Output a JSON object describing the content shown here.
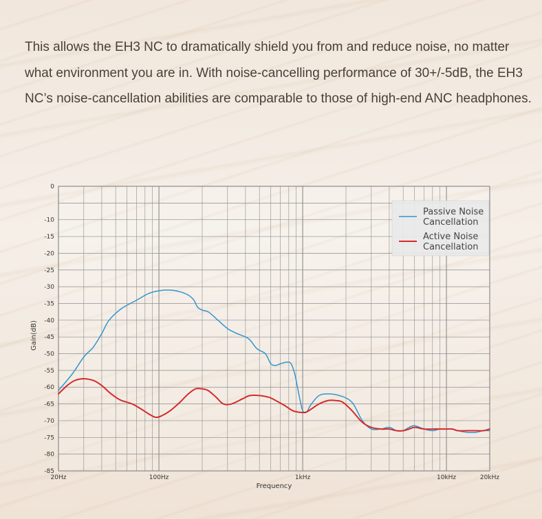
{
  "intro": {
    "lines": [
      "This allows the EH3 NC to dramatically shield you from and reduce noise, no matter",
      "what environment you are in. With noise-cancelling performance of 30+/-5dB, the EH3",
      "NC’s noise-cancellation abilities are comparable to those of high-end ANC headphones."
    ]
  },
  "colors": {
    "passive": "#2f96cf",
    "active": "#d42a2a",
    "grid": "#8c8c8c"
  },
  "chart_data": {
    "type": "line",
    "title": "",
    "xlabel": "Frequency",
    "ylabel": "Gain(dB)",
    "x_scale": "log",
    "xlim": [
      20,
      20000
    ],
    "ylim": [
      -85,
      0
    ],
    "y_ticks": [
      0,
      -10,
      -15,
      -20,
      -25,
      -30,
      -35,
      -40,
      -45,
      -50,
      -55,
      -60,
      -65,
      -70,
      -75,
      -80,
      -85
    ],
    "x_tick_labels": [
      {
        "value": 20,
        "label": "20Hz"
      },
      {
        "value": 100,
        "label": "100Hz"
      },
      {
        "value": 1000,
        "label": "1kHz"
      },
      {
        "value": 10000,
        "label": "10kHz"
      },
      {
        "value": 20000,
        "label": "20kHz"
      }
    ],
    "legend": {
      "position": "top-right",
      "entries": [
        {
          "key": "passive",
          "lines": [
            "Passive Noise",
            "Cancellation"
          ]
        },
        {
          "key": "active",
          "lines": [
            "Active Noise",
            "Cancellation"
          ]
        }
      ]
    },
    "series": [
      {
        "name": "Passive Noise Cancellation",
        "key": "passive",
        "points": [
          [
            20,
            -61
          ],
          [
            25,
            -56
          ],
          [
            30,
            -51
          ],
          [
            35,
            -48
          ],
          [
            40,
            -44
          ],
          [
            45,
            -40
          ],
          [
            55,
            -36.5
          ],
          [
            70,
            -34
          ],
          [
            85,
            -32
          ],
          [
            100,
            -31.2
          ],
          [
            120,
            -31
          ],
          [
            140,
            -31.5
          ],
          [
            160,
            -32.5
          ],
          [
            175,
            -34
          ],
          [
            185,
            -36
          ],
          [
            200,
            -37
          ],
          [
            220,
            -37.5
          ],
          [
            250,
            -39.5
          ],
          [
            300,
            -42.5
          ],
          [
            350,
            -44
          ],
          [
            420,
            -45.5
          ],
          [
            480,
            -48.5
          ],
          [
            550,
            -50
          ],
          [
            600,
            -53
          ],
          [
            650,
            -53.5
          ],
          [
            700,
            -53
          ],
          [
            780,
            -52.5
          ],
          [
            830,
            -53
          ],
          [
            880,
            -56
          ],
          [
            920,
            -60
          ],
          [
            960,
            -64
          ],
          [
            1000,
            -67
          ],
          [
            1060,
            -67.5
          ],
          [
            1150,
            -65
          ],
          [
            1300,
            -62.5
          ],
          [
            1500,
            -62
          ],
          [
            1800,
            -62.5
          ],
          [
            2200,
            -64.5
          ],
          [
            2600,
            -70
          ],
          [
            3000,
            -72.5
          ],
          [
            3500,
            -72.5
          ],
          [
            4000,
            -72
          ],
          [
            4500,
            -73
          ],
          [
            5000,
            -73
          ],
          [
            5500,
            -72
          ],
          [
            6000,
            -71.5
          ],
          [
            7000,
            -72.5
          ],
          [
            8000,
            -73
          ],
          [
            9000,
            -72.5
          ],
          [
            10000,
            -72.5
          ],
          [
            11000,
            -72.5
          ],
          [
            12000,
            -73
          ],
          [
            14000,
            -73.5
          ],
          [
            16000,
            -73.5
          ],
          [
            18000,
            -73
          ],
          [
            20000,
            -73
          ]
        ]
      },
      {
        "name": "Active Noise Cancellation",
        "key": "active",
        "points": [
          [
            20,
            -62
          ],
          [
            23,
            -59.5
          ],
          [
            26,
            -58
          ],
          [
            30,
            -57.5
          ],
          [
            35,
            -58
          ],
          [
            40,
            -59.5
          ],
          [
            45,
            -61.5
          ],
          [
            50,
            -63
          ],
          [
            55,
            -64
          ],
          [
            65,
            -65
          ],
          [
            75,
            -66.5
          ],
          [
            85,
            -68
          ],
          [
            95,
            -69
          ],
          [
            105,
            -68.5
          ],
          [
            120,
            -67
          ],
          [
            140,
            -64.5
          ],
          [
            160,
            -62
          ],
          [
            180,
            -60.5
          ],
          [
            200,
            -60.5
          ],
          [
            220,
            -61
          ],
          [
            250,
            -63
          ],
          [
            280,
            -65
          ],
          [
            320,
            -65
          ],
          [
            380,
            -63.5
          ],
          [
            430,
            -62.5
          ],
          [
            500,
            -62.5
          ],
          [
            580,
            -63
          ],
          [
            650,
            -64
          ],
          [
            750,
            -65.5
          ],
          [
            850,
            -67
          ],
          [
            950,
            -67.5
          ],
          [
            1050,
            -67.5
          ],
          [
            1150,
            -66.5
          ],
          [
            1300,
            -65
          ],
          [
            1500,
            -64
          ],
          [
            1700,
            -64
          ],
          [
            1900,
            -64.5
          ],
          [
            2200,
            -67
          ],
          [
            2600,
            -70.5
          ],
          [
            3000,
            -72
          ],
          [
            3500,
            -72.5
          ],
          [
            4000,
            -72.5
          ],
          [
            4500,
            -73
          ],
          [
            5000,
            -73
          ],
          [
            5500,
            -72.5
          ],
          [
            6000,
            -72
          ],
          [
            7000,
            -72.5
          ],
          [
            8000,
            -72.5
          ],
          [
            9000,
            -72.5
          ],
          [
            10000,
            -72.5
          ],
          [
            11000,
            -72.5
          ],
          [
            12000,
            -73
          ],
          [
            14000,
            -73
          ],
          [
            16000,
            -73
          ],
          [
            18000,
            -73
          ],
          [
            20000,
            -72.5
          ]
        ]
      }
    ]
  }
}
